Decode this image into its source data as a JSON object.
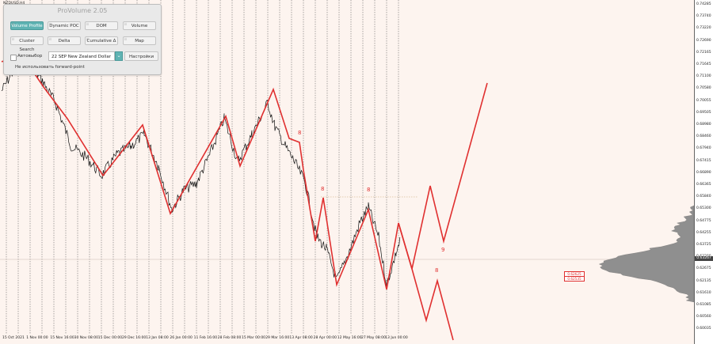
{
  "symbol": "NZDUSD,H4",
  "panel": {
    "title": "ProVolume 2.05",
    "buttons": [
      {
        "label": "Volume Profile",
        "active": true
      },
      {
        "label": "Dynamic POC",
        "active": false
      },
      {
        "label": "DOM",
        "active": false
      },
      {
        "label": "Volume",
        "active": false
      },
      {
        "label": "Cluster Search",
        "active": false
      },
      {
        "label": "Delta",
        "active": false
      },
      {
        "label": "Cumulative Δ",
        "active": false
      },
      {
        "label": "Map",
        "active": false
      }
    ],
    "auto_label": "Автовыбор",
    "instrument": "22 SEP New Zealand Dollar",
    "settings_label": "Настройки",
    "forward_label": "Не использовать forward-point"
  },
  "price_scale": [
    "0.74285",
    "0.73740",
    "0.73220",
    "0.72690",
    "0.72165",
    "0.71645",
    "0.71100",
    "0.70580",
    "0.70055",
    "0.69505",
    "0.68980",
    "0.68460",
    "0.67940",
    "0.67415",
    "0.66890",
    "0.66365",
    "0.65840",
    "0.65300",
    "0.64775",
    "0.64255",
    "0.63725",
    "0.63200",
    "0.62675",
    "0.62135",
    "0.61610",
    "0.61085",
    "0.60560",
    "0.60035"
  ],
  "current_price": "0.63267",
  "price_boxes": [
    "0.62625",
    "0.62535"
  ],
  "time_labels": [
    "15 Oct 2021",
    "1 Nov 00:00",
    "15 Nov 16:00",
    "30 Nov 08:00",
    "15 Dec 00:00",
    "29 Dec 16:00",
    "13 Jan 08:00",
    "26 Jan 00:00",
    "11 Feb 16:00",
    "28 Feb 08:00",
    "15 Mar 00:00",
    "29 Mar 16:00",
    "13 Apr 08:00",
    "28 Apr 00:00",
    "12 May 16:00",
    "27 May 08:00",
    "13 Jun 00:00"
  ],
  "wave_labels": [
    "8",
    "8",
    "8",
    "9",
    "8"
  ],
  "colors": {
    "wave": "#e03030",
    "background": "#fdf4ef",
    "accent": "#5fb3b3"
  }
}
